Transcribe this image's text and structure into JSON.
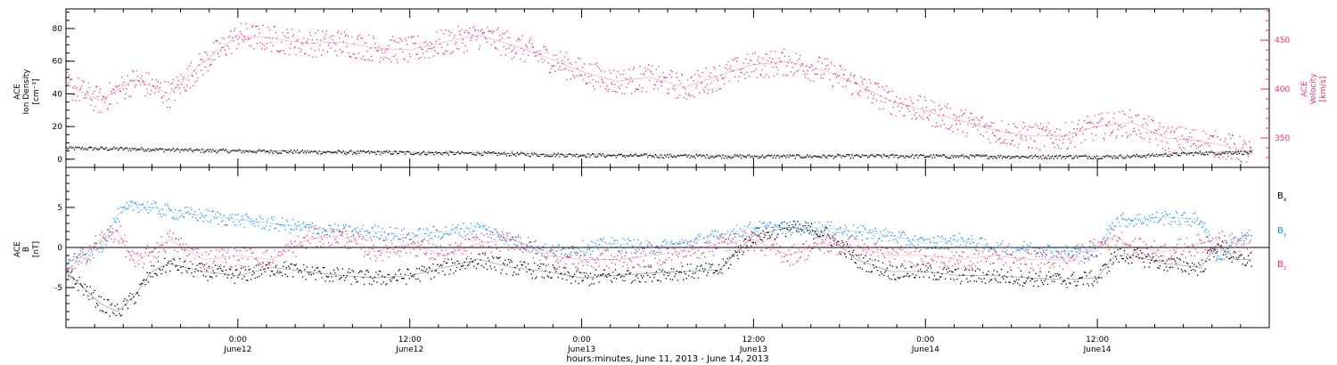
{
  "chart_data": [
    {
      "type": "scatter",
      "panel": "top",
      "ylabel_left": [
        "ACE",
        "Ion Density",
        "[cm⁻³]"
      ],
      "ylabel_right": [
        "ACE",
        "Velocity",
        "[km/s]"
      ],
      "ylim_left": [
        -5,
        92
      ],
      "ylim_right": [
        320,
        482
      ],
      "yticks_left": [
        0,
        20,
        40,
        60,
        80
      ],
      "yticks_right": [
        350,
        400,
        450
      ],
      "x_days": [
        0,
        3.5
      ],
      "series": [
        {
          "axis": "left",
          "color": "#000000",
          "points": [
            [
              0.0,
              7
            ],
            [
              0.2,
              6.5
            ],
            [
              0.4,
              5.5
            ],
            [
              0.6,
              5
            ],
            [
              0.8,
              4.5
            ],
            [
              1.0,
              4.2
            ],
            [
              1.2,
              3.8
            ],
            [
              1.4,
              3
            ],
            [
              1.6,
              2.5
            ],
            [
              1.8,
              2.2
            ],
            [
              2.0,
              2.0
            ],
            [
              2.2,
              2.0
            ],
            [
              2.4,
              2.2
            ],
            [
              2.6,
              2.0
            ],
            [
              2.8,
              1.8
            ],
            [
              3.0,
              1.8
            ],
            [
              3.1,
              2
            ],
            [
              3.2,
              3
            ],
            [
              3.3,
              4
            ],
            [
              3.4,
              4.5
            ],
            [
              3.45,
              4.2
            ]
          ]
        },
        {
          "axis": "right",
          "color": "#e8365f",
          "points": [
            [
              0.0,
              405
            ],
            [
              0.1,
              388
            ],
            [
              0.2,
              410
            ],
            [
              0.3,
              395
            ],
            [
              0.4,
              428
            ],
            [
              0.5,
              455
            ],
            [
              0.6,
              452
            ],
            [
              0.7,
              447
            ],
            [
              0.8,
              448
            ],
            [
              0.9,
              442
            ],
            [
              1.0,
              440
            ],
            [
              1.1,
              448
            ],
            [
              1.2,
              455
            ],
            [
              1.3,
              445
            ],
            [
              1.4,
              432
            ],
            [
              1.5,
              418
            ],
            [
              1.6,
              408
            ],
            [
              1.7,
              412
            ],
            [
              1.8,
              402
            ],
            [
              1.9,
              414
            ],
            [
              2.0,
              425
            ],
            [
              2.1,
              428
            ],
            [
              2.2,
              420
            ],
            [
              2.3,
              405
            ],
            [
              2.4,
              388
            ],
            [
              2.5,
              378
            ],
            [
              2.6,
              368
            ],
            [
              2.7,
              358
            ],
            [
              2.8,
              352
            ],
            [
              2.9,
              352
            ],
            [
              3.0,
              362
            ],
            [
              3.1,
              366
            ],
            [
              3.2,
              350
            ],
            [
              3.3,
              347
            ],
            [
              3.4,
              340
            ],
            [
              3.45,
              335
            ]
          ]
        }
      ]
    },
    {
      "type": "scatter",
      "panel": "bottom",
      "ylabel": [
        "ACE",
        "B",
        "[nT]"
      ],
      "ylim": [
        -10,
        10
      ],
      "yticks": [
        -5,
        0,
        5
      ],
      "legend": [
        {
          "label": "B",
          "sub": "x",
          "color": "#000000"
        },
        {
          "label": "B",
          "sub": "y",
          "color": "#1f8fe8"
        },
        {
          "label": "B",
          "sub": "z",
          "color": "#e8365f"
        }
      ],
      "series": [
        {
          "name": "Bx",
          "color": "#000000",
          "points": [
            [
              0.0,
              -3
            ],
            [
              0.05,
              -5
            ],
            [
              0.1,
              -7
            ],
            [
              0.15,
              -8
            ],
            [
              0.2,
              -6
            ],
            [
              0.25,
              -3
            ],
            [
              0.3,
              -2
            ],
            [
              0.4,
              -3
            ],
            [
              0.5,
              -3.5
            ],
            [
              0.6,
              -2.5
            ],
            [
              0.7,
              -3
            ],
            [
              0.8,
              -3.5
            ],
            [
              0.9,
              -3.8
            ],
            [
              1.0,
              -3.5
            ],
            [
              1.1,
              -2.5
            ],
            [
              1.2,
              -1.5
            ],
            [
              1.3,
              -2.5
            ],
            [
              1.4,
              -3
            ],
            [
              1.5,
              -3.8
            ],
            [
              1.6,
              -3.5
            ],
            [
              1.7,
              -3.2
            ],
            [
              1.8,
              -3.0
            ],
            [
              1.9,
              -2.8
            ],
            [
              2.0,
              1.5
            ],
            [
              2.1,
              2.5
            ],
            [
              2.2,
              2.0
            ],
            [
              2.3,
              -1.5
            ],
            [
              2.4,
              -3
            ],
            [
              2.5,
              -3
            ],
            [
              2.6,
              -3.5
            ],
            [
              2.7,
              -3.5
            ],
            [
              2.8,
              -3.8
            ],
            [
              2.9,
              -4.0
            ],
            [
              3.0,
              -3.8
            ],
            [
              3.05,
              -1
            ],
            [
              3.1,
              -1
            ],
            [
              3.2,
              -2
            ],
            [
              3.3,
              -2.5
            ],
            [
              3.35,
              0.5
            ],
            [
              3.4,
              -1.5
            ],
            [
              3.45,
              -1.5
            ]
          ]
        },
        {
          "name": "By",
          "color": "#1f8fe8",
          "points": [
            [
              0.0,
              -2
            ],
            [
              0.1,
              0
            ],
            [
              0.15,
              4
            ],
            [
              0.2,
              5.5
            ],
            [
              0.3,
              4.5
            ],
            [
              0.4,
              4
            ],
            [
              0.5,
              3.5
            ],
            [
              0.6,
              3
            ],
            [
              0.7,
              2.5
            ],
            [
              0.8,
              2
            ],
            [
              0.9,
              2
            ],
            [
              1.0,
              1.5
            ],
            [
              1.1,
              2
            ],
            [
              1.2,
              2.5
            ],
            [
              1.3,
              1
            ],
            [
              1.4,
              -0.5
            ],
            [
              1.5,
              0
            ],
            [
              1.6,
              0.5
            ],
            [
              1.7,
              0
            ],
            [
              1.8,
              0.5
            ],
            [
              1.9,
              1.5
            ],
            [
              2.0,
              2.5
            ],
            [
              2.1,
              2.5
            ],
            [
              2.2,
              2.5
            ],
            [
              2.3,
              2
            ],
            [
              2.4,
              1.5
            ],
            [
              2.5,
              0.5
            ],
            [
              2.6,
              1
            ],
            [
              2.7,
              0
            ],
            [
              2.8,
              0
            ],
            [
              2.9,
              -0.5
            ],
            [
              3.0,
              -0.5
            ],
            [
              3.05,
              3.5
            ],
            [
              3.1,
              3.5
            ],
            [
              3.2,
              3.8
            ],
            [
              3.3,
              3.5
            ],
            [
              3.35,
              -1.5
            ],
            [
              3.4,
              1
            ],
            [
              3.45,
              1.5
            ]
          ]
        },
        {
          "name": "Bz",
          "color": "#e8365f",
          "points": [
            [
              0.0,
              -3
            ],
            [
              0.1,
              1
            ],
            [
              0.15,
              2
            ],
            [
              0.2,
              -2
            ],
            [
              0.3,
              1
            ],
            [
              0.4,
              -1.5
            ],
            [
              0.5,
              -1
            ],
            [
              0.6,
              -1.5
            ],
            [
              0.7,
              1
            ],
            [
              0.8,
              1.5
            ],
            [
              0.9,
              -0.5
            ],
            [
              1.0,
              0.5
            ],
            [
              1.1,
              -1
            ],
            [
              1.2,
              0.5
            ],
            [
              1.3,
              1
            ],
            [
              1.4,
              -1
            ],
            [
              1.5,
              -1.5
            ],
            [
              1.6,
              -1.5
            ],
            [
              1.7,
              -1
            ],
            [
              1.8,
              -0.5
            ],
            [
              1.9,
              0.5
            ],
            [
              2.0,
              1
            ],
            [
              2.1,
              -1
            ],
            [
              2.2,
              0.5
            ],
            [
              2.3,
              0
            ],
            [
              2.4,
              -1
            ],
            [
              2.5,
              -1
            ],
            [
              2.6,
              -1.5
            ],
            [
              2.7,
              -1
            ],
            [
              2.8,
              -1.5
            ],
            [
              2.9,
              -1.5
            ],
            [
              3.0,
              0
            ],
            [
              3.05,
              1.5
            ],
            [
              3.1,
              0
            ],
            [
              3.2,
              -0.5
            ],
            [
              3.3,
              0.5
            ],
            [
              3.35,
              1
            ],
            [
              3.4,
              0.5
            ],
            [
              3.45,
              0.5
            ]
          ]
        }
      ]
    }
  ],
  "x_axis": {
    "ticks": [
      {
        "day": 0.5,
        "line1": "0:00",
        "line2": "June12"
      },
      {
        "day": 1.0,
        "line1": "12:00",
        "line2": "June12"
      },
      {
        "day": 1.5,
        "line1": "0:00",
        "line2": "June13"
      },
      {
        "day": 2.0,
        "line1": "12:00",
        "line2": "June13"
      },
      {
        "day": 2.5,
        "line1": "0:00",
        "line2": "June14"
      },
      {
        "day": 3.0,
        "line1": "12:00",
        "line2": "June14"
      }
    ],
    "title": "hours:minutes, June 11, 2013 - June 14, 2013"
  },
  "colors": {
    "black": "#000000",
    "blue": "#1f8fe8",
    "pink": "#e8365f"
  }
}
